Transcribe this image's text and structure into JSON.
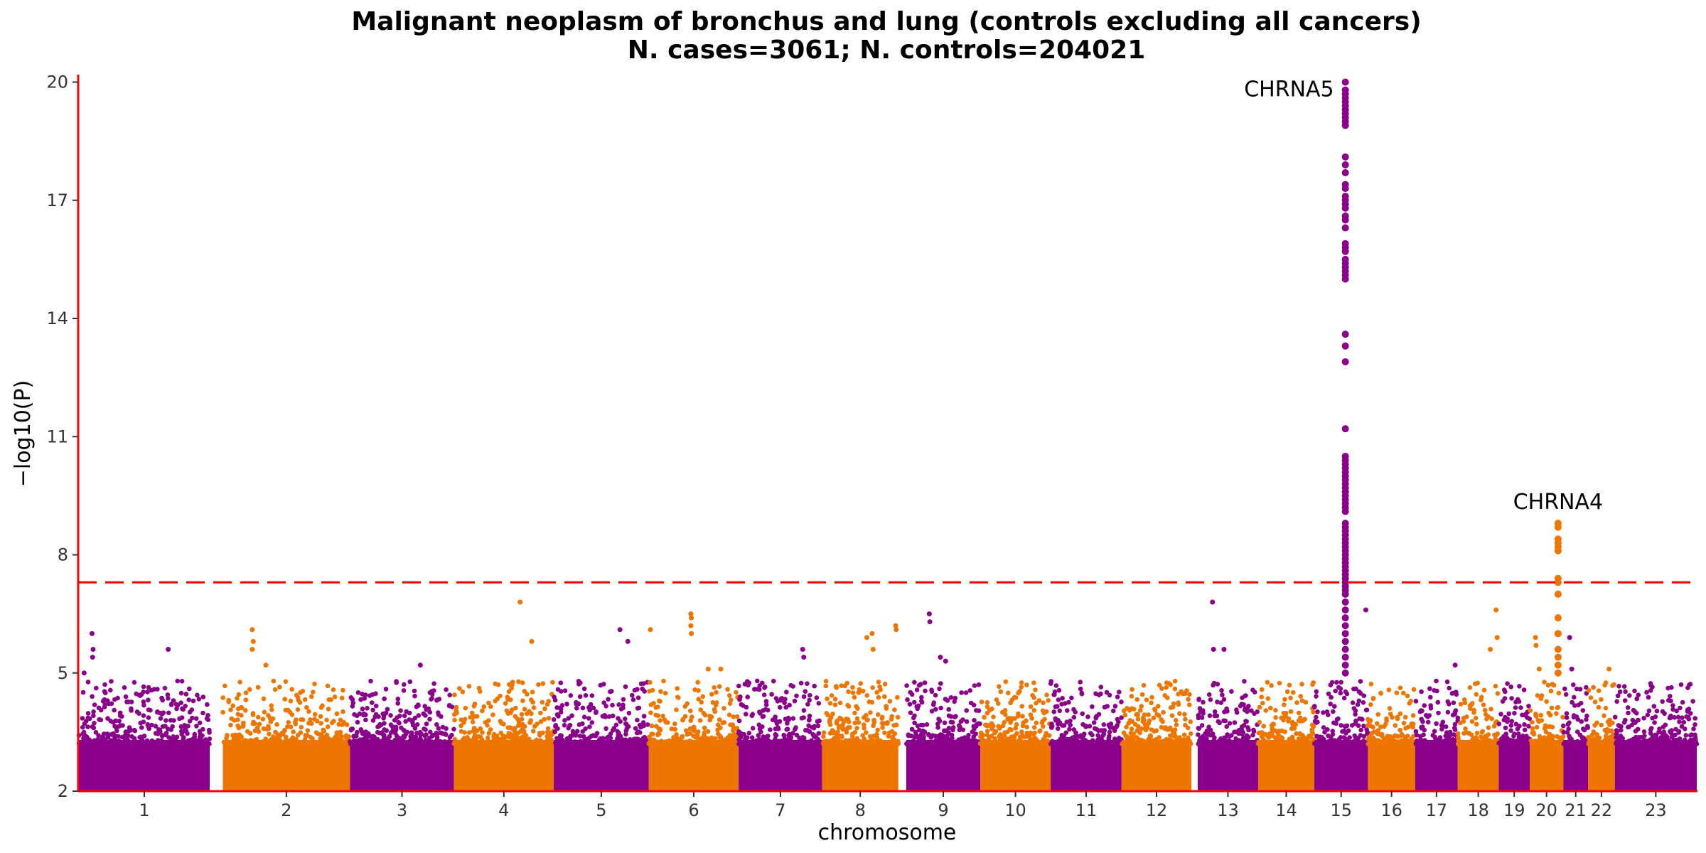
{
  "chart_data": {
    "type": "scatter",
    "title": "Malignant neoplasm of bronchus and lung (controls excluding all cancers)",
    "subtitle": "N. cases=3061; N. controls=204021",
    "xlabel": "chromosome",
    "ylabel": "−log10(P)",
    "ylim": [
      2,
      20.2
    ],
    "yticks": [
      "20",
      "17",
      "14",
      "11",
      "8",
      "5",
      "2"
    ],
    "significance_threshold": 7.3,
    "grid": false,
    "legend": "none",
    "colors": {
      "odd": "#8B008B",
      "even": "#EE7600",
      "threshold": "#FF0000",
      "axis": "#FF0000"
    },
    "chromosomes": [
      {
        "label": "1",
        "start": 0,
        "end": 249
      },
      {
        "label": "2",
        "start": 274,
        "end": 516
      },
      {
        "label": "3",
        "start": 516,
        "end": 714
      },
      {
        "label": "4",
        "start": 714,
        "end": 904
      },
      {
        "label": "5",
        "start": 904,
        "end": 1085
      },
      {
        "label": "6",
        "start": 1085,
        "end": 1256
      },
      {
        "label": "7",
        "start": 1256,
        "end": 1415
      },
      {
        "label": "8",
        "start": 1415,
        "end": 1560
      },
      {
        "label": "9",
        "start": 1575,
        "end": 1716
      },
      {
        "label": "10",
        "start": 1716,
        "end": 1850
      },
      {
        "label": "11",
        "start": 1850,
        "end": 1985
      },
      {
        "label": "12",
        "start": 1985,
        "end": 2118
      },
      {
        "label": "13",
        "start": 2130,
        "end": 2245
      },
      {
        "label": "14",
        "start": 2245,
        "end": 2352
      },
      {
        "label": "15",
        "start": 2352,
        "end": 2454
      },
      {
        "label": "16",
        "start": 2454,
        "end": 2544
      },
      {
        "label": "17",
        "start": 2544,
        "end": 2625
      },
      {
        "label": "18",
        "start": 2625,
        "end": 2703
      },
      {
        "label": "19",
        "start": 2703,
        "end": 2762
      },
      {
        "label": "20",
        "start": 2762,
        "end": 2826
      },
      {
        "label": "21",
        "start": 2826,
        "end": 2873
      },
      {
        "label": "22",
        "start": 2873,
        "end": 2924
      },
      {
        "label": "23",
        "start": 2924,
        "end": 3080
      }
    ],
    "peaks": [
      {
        "chrom": "15",
        "x": 2411,
        "values": [
          20.0,
          19.8,
          19.7,
          19.6,
          19.5,
          19.4,
          19.3,
          19.2,
          19.1,
          19.0,
          18.9,
          18.1,
          17.9,
          17.7,
          17.4,
          17.3,
          17.1,
          17.0,
          16.9,
          16.8,
          16.6,
          16.5,
          16.3,
          15.9,
          15.8,
          15.7,
          15.5,
          15.4,
          15.3,
          15.2,
          15.1,
          15.0,
          13.6,
          13.3,
          12.9,
          11.2,
          10.5,
          10.4,
          10.3,
          10.2,
          10.1,
          10.0,
          9.9,
          9.8,
          9.7,
          9.6,
          9.5,
          9.4,
          9.3,
          9.2,
          9.1,
          8.8,
          8.7,
          8.6,
          8.5,
          8.4,
          8.3,
          8.2,
          8.1,
          8.0,
          7.9,
          7.8,
          7.7,
          7.6,
          7.5,
          7.4,
          7.3,
          7.2,
          7.1,
          7.0,
          6.8,
          6.6,
          6.4,
          6.2,
          6.0,
          5.8,
          5.6,
          5.4,
          5.2,
          5.0
        ]
      },
      {
        "chrom": "20",
        "x": 2816,
        "values": [
          8.8,
          8.7,
          8.4,
          8.3,
          8.2,
          8.1,
          7.4,
          7.3,
          7.0,
          6.4,
          6.0,
          5.6,
          5.4,
          5.2,
          5.0
        ]
      }
    ],
    "outliers": [
      {
        "x": 25,
        "y": 6.0
      },
      {
        "x": 27,
        "y": 5.6
      },
      {
        "x": 26,
        "y": 5.4
      },
      {
        "x": 10,
        "y": 5.0
      },
      {
        "x": 170,
        "y": 5.6
      },
      {
        "x": 330,
        "y": 6.1
      },
      {
        "x": 332,
        "y": 5.8
      },
      {
        "x": 330,
        "y": 5.6
      },
      {
        "x": 356,
        "y": 5.2
      },
      {
        "x": 650,
        "y": 5.2
      },
      {
        "x": 840,
        "y": 6.8
      },
      {
        "x": 862,
        "y": 5.8
      },
      {
        "x": 1045,
        "y": 5.8
      },
      {
        "x": 1030,
        "y": 6.1
      },
      {
        "x": 1088,
        "y": 6.1
      },
      {
        "x": 1165,
        "y": 6.5
      },
      {
        "x": 1166,
        "y": 6.4
      },
      {
        "x": 1165,
        "y": 6.2
      },
      {
        "x": 1166,
        "y": 6.0
      },
      {
        "x": 1198,
        "y": 5.1
      },
      {
        "x": 1222,
        "y": 5.1
      },
      {
        "x": 1378,
        "y": 5.6
      },
      {
        "x": 1380,
        "y": 5.4
      },
      {
        "x": 1500,
        "y": 5.9
      },
      {
        "x": 1510,
        "y": 6.0
      },
      {
        "x": 1512,
        "y": 5.6
      },
      {
        "x": 1555,
        "y": 6.2
      },
      {
        "x": 1556,
        "y": 6.1
      },
      {
        "x": 1619,
        "y": 6.5
      },
      {
        "x": 1620,
        "y": 6.3
      },
      {
        "x": 1640,
        "y": 5.4
      },
      {
        "x": 1650,
        "y": 5.3
      },
      {
        "x": 2158,
        "y": 6.8
      },
      {
        "x": 2160,
        "y": 5.6
      },
      {
        "x": 2180,
        "y": 5.6
      },
      {
        "x": 2450,
        "y": 6.6
      },
      {
        "x": 2620,
        "y": 5.2
      },
      {
        "x": 2687,
        "y": 5.6
      },
      {
        "x": 2698,
        "y": 6.6
      },
      {
        "x": 2700,
        "y": 5.9
      },
      {
        "x": 2773,
        "y": 5.9
      },
      {
        "x": 2774,
        "y": 5.7
      },
      {
        "x": 2838,
        "y": 5.9
      },
      {
        "x": 2842,
        "y": 5.1
      },
      {
        "x": 2913,
        "y": 5.1
      },
      {
        "x": 2780,
        "y": 5.1
      }
    ],
    "annotations": [
      {
        "text": "CHRNA5",
        "x": 2411,
        "y": 20.0,
        "anchor": "left-of-peak"
      },
      {
        "text": "CHRNA4",
        "x": 2816,
        "y": 8.8,
        "anchor": "above-peak"
      }
    ]
  }
}
